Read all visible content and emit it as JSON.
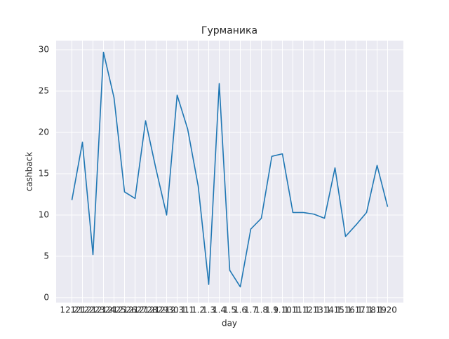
{
  "chart_data": {
    "type": "line",
    "title": "Гурманика",
    "xlabel": "day",
    "ylabel": "cashback",
    "categories": [
      "12.21",
      "12.22",
      "12.23",
      "12.24",
      "12.25",
      "12.26",
      "12.27",
      "12.28",
      "12.29",
      "12.30",
      "12.31",
      "1.1",
      "1.2",
      "1.3",
      "1.4",
      "1.5",
      "1.6",
      "1.7",
      "1.8",
      "1.9",
      "1.10",
      "1.11",
      "1.12",
      "1.13",
      "1.14",
      "1.15",
      "1.16",
      "1.17",
      "1.18",
      "1.19",
      "1.20"
    ],
    "series": [
      {
        "name": "cashback",
        "color": "#1f77b4",
        "values": [
          11.8,
          18.8,
          5.2,
          29.7,
          24.2,
          12.8,
          12.0,
          21.4,
          15.5,
          10.0,
          24.5,
          20.4,
          13.5,
          1.6,
          25.9,
          3.3,
          1.3,
          8.3,
          9.6,
          17.1,
          17.4,
          10.3,
          10.3,
          10.1,
          9.6,
          15.7,
          7.4,
          8.8,
          10.3,
          16.0,
          11.0
        ]
      }
    ],
    "ylim": [
      -0.6,
      31.1
    ],
    "yticks": [
      0,
      5,
      10,
      15,
      20,
      25,
      30
    ],
    "grid": true
  }
}
